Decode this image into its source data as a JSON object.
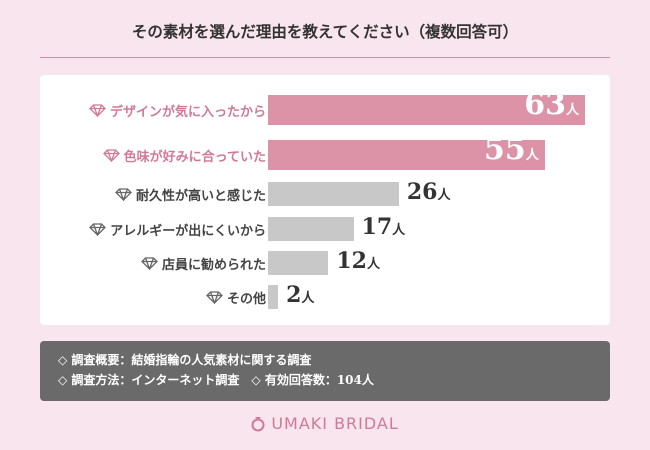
{
  "chart_data": {
    "type": "bar",
    "orientation": "horizontal",
    "title": "その素材を選んだ理由を教えてください（複数回答可）",
    "categories": [
      "デザインが気に入ったから",
      "色味が好みに合っていた",
      "耐久性が高いと感じた",
      "アレルギーが出にくいから",
      "店員に勧められた",
      "その他"
    ],
    "values": [
      63,
      55,
      26,
      17,
      12,
      2
    ],
    "unit": "人",
    "highlight_color": "#dc93a8",
    "base_color": "#c8c8c8",
    "highlight_label_color": "#d07a96",
    "base_label_color": "#444444",
    "highlight_count": 2
  },
  "notes": [
    "◇ 調査概要：結婚指輪の人気素材に関する調査",
    "◇ 調査方法：インターネット調査　◇ 有効回答数：104人"
  ],
  "brand": {
    "name": "UMAKI BRIDAL",
    "icon": "ring-icon"
  }
}
